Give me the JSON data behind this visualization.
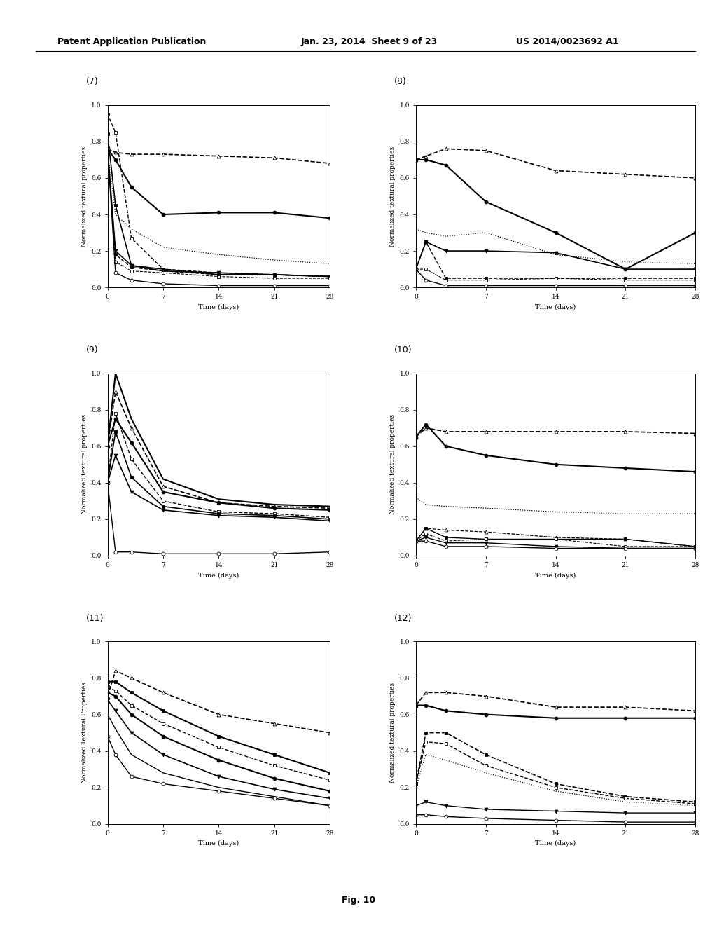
{
  "subplot_labels": [
    "(7)",
    "(8)",
    "(9)",
    "(10)",
    "(11)",
    "(12)"
  ],
  "xlabel": "Time (days)",
  "x_ticks": [
    0,
    7,
    14,
    21,
    28
  ],
  "ylim": [
    0.0,
    1.0
  ],
  "yticks": [
    0.0,
    0.2,
    0.4,
    0.6,
    0.8,
    1.0
  ],
  "ylabels": {
    "plot7": "Normalized textural properties",
    "plot8": "Normalized textural properties",
    "plot9": "Normalized textural properties",
    "plot10": "Normalized textural properties",
    "plot11": "Normalized Textural Properties",
    "plot12": "Normalized textural properties"
  },
  "plot7": {
    "series": [
      {
        "x": [
          0,
          1,
          3,
          7,
          14,
          21,
          28
        ],
        "y": [
          0.95,
          0.85,
          0.27,
          0.1,
          0.08,
          0.07,
          0.06
        ],
        "color": "black",
        "ls": "--",
        "marker": "s",
        "mfc": "white",
        "lw": 1.0
      },
      {
        "x": [
          0,
          1,
          3,
          7,
          14,
          21,
          28
        ],
        "y": [
          0.84,
          0.45,
          0.12,
          0.1,
          0.07,
          0.07,
          0.06
        ],
        "color": "black",
        "ls": "-",
        "marker": "s",
        "mfc": "black",
        "lw": 1.2
      },
      {
        "x": [
          0,
          1,
          3,
          7,
          14,
          21,
          28
        ],
        "y": [
          0.76,
          0.74,
          0.73,
          0.73,
          0.72,
          0.71,
          0.68
        ],
        "color": "black",
        "ls": "--",
        "marker": "^",
        "mfc": "white",
        "lw": 1.2
      },
      {
        "x": [
          0,
          1,
          3,
          7,
          14,
          21,
          28
        ],
        "y": [
          0.76,
          0.7,
          0.55,
          0.4,
          0.41,
          0.41,
          0.38
        ],
        "color": "black",
        "ls": "-",
        "marker": "o",
        "mfc": "black",
        "lw": 1.5
      },
      {
        "x": [
          0,
          1,
          3,
          7,
          14,
          21,
          28
        ],
        "y": [
          0.76,
          0.4,
          0.32,
          0.22,
          0.18,
          0.15,
          0.13
        ],
        "color": "black",
        "ls": ":",
        "marker": null,
        "mfc": null,
        "lw": 0.9
      },
      {
        "x": [
          0,
          1,
          3,
          7,
          14,
          21,
          28
        ],
        "y": [
          0.76,
          0.2,
          0.12,
          0.09,
          0.08,
          0.07,
          0.06
        ],
        "color": "black",
        "ls": "-",
        "marker": "v",
        "mfc": "black",
        "lw": 1.2
      },
      {
        "x": [
          0,
          1,
          3,
          7,
          14,
          21,
          28
        ],
        "y": [
          0.76,
          0.18,
          0.11,
          0.09,
          0.07,
          0.07,
          0.06
        ],
        "color": "black",
        "ls": "--",
        "marker": "s",
        "mfc": "black",
        "lw": 1.0
      },
      {
        "x": [
          0,
          1,
          3,
          7,
          14,
          21,
          28
        ],
        "y": [
          0.76,
          0.14,
          0.09,
          0.08,
          0.06,
          0.05,
          0.05
        ],
        "color": "black",
        "ls": "--",
        "marker": "s",
        "mfc": "white",
        "lw": 0.8
      },
      {
        "x": [
          0,
          1,
          3,
          7,
          14,
          21,
          28
        ],
        "y": [
          0.76,
          0.08,
          0.04,
          0.02,
          0.01,
          0.01,
          0.01
        ],
        "color": "black",
        "ls": "-",
        "marker": "o",
        "mfc": "white",
        "lw": 1.0
      }
    ]
  },
  "plot8": {
    "series": [
      {
        "x": [
          0,
          1,
          3,
          7,
          14,
          21,
          28
        ],
        "y": [
          0.7,
          0.72,
          0.76,
          0.75,
          0.64,
          0.62,
          0.6
        ],
        "color": "black",
        "ls": "--",
        "marker": "^",
        "mfc": "white",
        "lw": 1.2
      },
      {
        "x": [
          0,
          1,
          3,
          7,
          14,
          21,
          28
        ],
        "y": [
          0.7,
          0.7,
          0.67,
          0.47,
          0.3,
          0.1,
          0.3
        ],
        "color": "black",
        "ls": "-",
        "marker": "o",
        "mfc": "black",
        "lw": 1.5
      },
      {
        "x": [
          0,
          1,
          3,
          7,
          14,
          21,
          28
        ],
        "y": [
          0.32,
          0.3,
          0.28,
          0.3,
          0.18,
          0.14,
          0.13
        ],
        "color": "black",
        "ls": ":",
        "marker": null,
        "mfc": null,
        "lw": 0.9
      },
      {
        "x": [
          0,
          1,
          3,
          7,
          14,
          21,
          28
        ],
        "y": [
          0.1,
          0.25,
          0.2,
          0.2,
          0.19,
          0.1,
          0.1
        ],
        "color": "black",
        "ls": "-",
        "marker": "v",
        "mfc": "black",
        "lw": 1.2
      },
      {
        "x": [
          0,
          1,
          3,
          7,
          14,
          21,
          28
        ],
        "y": [
          0.1,
          0.25,
          0.05,
          0.05,
          0.05,
          0.05,
          0.05
        ],
        "color": "black",
        "ls": "--",
        "marker": "s",
        "mfc": "black",
        "lw": 1.0
      },
      {
        "x": [
          0,
          1,
          3,
          7,
          14,
          21,
          28
        ],
        "y": [
          0.1,
          0.1,
          0.04,
          0.04,
          0.05,
          0.04,
          0.04
        ],
        "color": "black",
        "ls": "--",
        "marker": "s",
        "mfc": "white",
        "lw": 0.8
      },
      {
        "x": [
          0,
          1,
          3,
          7,
          14,
          21,
          28
        ],
        "y": [
          0.1,
          0.04,
          0.01,
          0.01,
          0.01,
          0.01,
          0.01
        ],
        "color": "black",
        "ls": "-",
        "marker": "o",
        "mfc": "white",
        "lw": 1.0
      }
    ]
  },
  "plot9": {
    "series": [
      {
        "x": [
          0,
          1,
          3,
          7,
          14,
          21,
          28
        ],
        "y": [
          0.6,
          1.0,
          0.75,
          0.42,
          0.31,
          0.28,
          0.27
        ],
        "color": "black",
        "ls": "-",
        "marker": null,
        "mfc": null,
        "lw": 1.5
      },
      {
        "x": [
          0,
          1,
          3,
          7,
          14,
          21,
          28
        ],
        "y": [
          0.6,
          0.9,
          0.7,
          0.38,
          0.29,
          0.27,
          0.26
        ],
        "color": "black",
        "ls": "--",
        "marker": "^",
        "mfc": "white",
        "lw": 1.2
      },
      {
        "x": [
          0,
          1,
          3,
          7,
          14,
          21,
          28
        ],
        "y": [
          0.6,
          0.75,
          0.62,
          0.35,
          0.29,
          0.26,
          0.25
        ],
        "color": "black",
        "ls": "-",
        "marker": "o",
        "mfc": "black",
        "lw": 1.5
      },
      {
        "x": [
          0,
          1,
          3,
          7,
          14,
          21,
          28
        ],
        "y": [
          0.4,
          0.78,
          0.53,
          0.3,
          0.24,
          0.23,
          0.21
        ],
        "color": "black",
        "ls": "--",
        "marker": "s",
        "mfc": "white",
        "lw": 1.0
      },
      {
        "x": [
          0,
          1,
          3,
          7,
          14,
          21,
          28
        ],
        "y": [
          0.4,
          0.68,
          0.43,
          0.27,
          0.23,
          0.22,
          0.2
        ],
        "color": "black",
        "ls": "-",
        "marker": "s",
        "mfc": "black",
        "lw": 1.2
      },
      {
        "x": [
          0,
          1,
          3,
          7,
          14,
          21,
          28
        ],
        "y": [
          0.4,
          0.55,
          0.35,
          0.25,
          0.22,
          0.21,
          0.19
        ],
        "color": "black",
        "ls": "-",
        "marker": "v",
        "mfc": "black",
        "lw": 1.2
      },
      {
        "x": [
          0,
          1,
          3,
          7,
          14,
          21,
          28
        ],
        "y": [
          0.4,
          0.02,
          0.02,
          0.01,
          0.01,
          0.01,
          0.02
        ],
        "color": "black",
        "ls": "-",
        "marker": "o",
        "mfc": "white",
        "lw": 1.0
      }
    ]
  },
  "plot10": {
    "series": [
      {
        "x": [
          0,
          1,
          3,
          7,
          14,
          21,
          28
        ],
        "y": [
          0.65,
          0.7,
          0.68,
          0.68,
          0.68,
          0.68,
          0.67
        ],
        "color": "black",
        "ls": "--",
        "marker": "^",
        "mfc": "white",
        "lw": 1.2
      },
      {
        "x": [
          0,
          1,
          3,
          7,
          14,
          21,
          28
        ],
        "y": [
          0.65,
          0.72,
          0.6,
          0.55,
          0.5,
          0.48,
          0.46
        ],
        "color": "black",
        "ls": "-",
        "marker": "o",
        "mfc": "black",
        "lw": 1.5
      },
      {
        "x": [
          0,
          1,
          3,
          7,
          14,
          21,
          28
        ],
        "y": [
          0.32,
          0.28,
          0.27,
          0.26,
          0.24,
          0.23,
          0.23
        ],
        "color": "black",
        "ls": ":",
        "marker": null,
        "mfc": null,
        "lw": 0.9
      },
      {
        "x": [
          0,
          1,
          3,
          7,
          14,
          21,
          28
        ],
        "y": [
          0.08,
          0.15,
          0.14,
          0.13,
          0.1,
          0.09,
          0.05
        ],
        "color": "black",
        "ls": "--",
        "marker": "^",
        "mfc": "white",
        "lw": 0.9
      },
      {
        "x": [
          0,
          1,
          3,
          7,
          14,
          21,
          28
        ],
        "y": [
          0.08,
          0.15,
          0.1,
          0.09,
          0.09,
          0.09,
          0.05
        ],
        "color": "black",
        "ls": "-",
        "marker": "s",
        "mfc": "black",
        "lw": 1.0
      },
      {
        "x": [
          0,
          1,
          3,
          7,
          14,
          21,
          28
        ],
        "y": [
          0.08,
          0.12,
          0.08,
          0.09,
          0.09,
          0.05,
          0.05
        ],
        "color": "black",
        "ls": "--",
        "marker": "s",
        "mfc": "white",
        "lw": 0.8
      },
      {
        "x": [
          0,
          1,
          3,
          7,
          14,
          21,
          28
        ],
        "y": [
          0.08,
          0.1,
          0.07,
          0.07,
          0.05,
          0.04,
          0.04
        ],
        "color": "black",
        "ls": "-",
        "marker": "v",
        "mfc": "black",
        "lw": 1.0
      },
      {
        "x": [
          0,
          1,
          3,
          7,
          14,
          21,
          28
        ],
        "y": [
          0.08,
          0.08,
          0.05,
          0.05,
          0.04,
          0.04,
          0.04
        ],
        "color": "black",
        "ls": "-",
        "marker": "o",
        "mfc": "white",
        "lw": 1.0
      }
    ]
  },
  "plot11": {
    "series": [
      {
        "x": [
          0,
          1,
          3,
          7,
          14,
          21,
          28
        ],
        "y": [
          0.7,
          0.84,
          0.8,
          0.72,
          0.6,
          0.55,
          0.5
        ],
        "color": "black",
        "ls": "--",
        "marker": "^",
        "mfc": "white",
        "lw": 1.2
      },
      {
        "x": [
          0,
          1,
          3,
          7,
          14,
          21,
          28
        ],
        "y": [
          0.78,
          0.78,
          0.72,
          0.62,
          0.48,
          0.38,
          0.28
        ],
        "color": "black",
        "ls": "-",
        "marker": "s",
        "mfc": "black",
        "lw": 1.5
      },
      {
        "x": [
          0,
          1,
          3,
          7,
          14,
          21,
          28
        ],
        "y": [
          0.75,
          0.73,
          0.65,
          0.55,
          0.42,
          0.32,
          0.24
        ],
        "color": "black",
        "ls": "--",
        "marker": "s",
        "mfc": "white",
        "lw": 1.0
      },
      {
        "x": [
          0,
          1,
          3,
          7,
          14,
          21,
          28
        ],
        "y": [
          0.72,
          0.7,
          0.6,
          0.48,
          0.35,
          0.25,
          0.18
        ],
        "color": "black",
        "ls": "-",
        "marker": "o",
        "mfc": "black",
        "lw": 1.5
      },
      {
        "x": [
          0,
          1,
          3,
          7,
          14,
          21,
          28
        ],
        "y": [
          0.68,
          0.62,
          0.5,
          0.38,
          0.26,
          0.19,
          0.14
        ],
        "color": "black",
        "ls": "-",
        "marker": "v",
        "mfc": "black",
        "lw": 1.2
      },
      {
        "x": [
          0,
          1,
          3,
          7,
          14,
          21,
          28
        ],
        "y": [
          0.6,
          0.52,
          0.38,
          0.28,
          0.2,
          0.15,
          0.1
        ],
        "color": "black",
        "ls": "-",
        "marker": null,
        "mfc": null,
        "lw": 1.0
      },
      {
        "x": [
          0,
          1,
          3,
          7,
          14,
          21,
          28
        ],
        "y": [
          0.48,
          0.38,
          0.26,
          0.22,
          0.18,
          0.14,
          0.1
        ],
        "color": "black",
        "ls": "-",
        "marker": "o",
        "mfc": "white",
        "lw": 1.0
      }
    ]
  },
  "plot12": {
    "series": [
      {
        "x": [
          0,
          1,
          3,
          7,
          14,
          21,
          28
        ],
        "y": [
          0.65,
          0.72,
          0.72,
          0.7,
          0.64,
          0.64,
          0.62
        ],
        "color": "black",
        "ls": "--",
        "marker": "^",
        "mfc": "white",
        "lw": 1.2
      },
      {
        "x": [
          0,
          1,
          3,
          7,
          14,
          21,
          28
        ],
        "y": [
          0.65,
          0.65,
          0.62,
          0.6,
          0.58,
          0.58,
          0.58
        ],
        "color": "black",
        "ls": "-",
        "marker": "o",
        "mfc": "black",
        "lw": 1.5
      },
      {
        "x": [
          0,
          1,
          3,
          7,
          14,
          21,
          28
        ],
        "y": [
          0.22,
          0.5,
          0.5,
          0.38,
          0.22,
          0.15,
          0.12
        ],
        "color": "black",
        "ls": "--",
        "marker": "s",
        "mfc": "black",
        "lw": 1.2
      },
      {
        "x": [
          0,
          1,
          3,
          7,
          14,
          21,
          28
        ],
        "y": [
          0.22,
          0.45,
          0.44,
          0.32,
          0.2,
          0.14,
          0.11
        ],
        "color": "black",
        "ls": "--",
        "marker": "s",
        "mfc": "white",
        "lw": 1.0
      },
      {
        "x": [
          0,
          1,
          3,
          7,
          14,
          21,
          28
        ],
        "y": [
          0.2,
          0.38,
          0.35,
          0.28,
          0.18,
          0.12,
          0.1
        ],
        "color": "black",
        "ls": ":",
        "marker": null,
        "mfc": null,
        "lw": 0.9
      },
      {
        "x": [
          0,
          1,
          3,
          7,
          14,
          21,
          28
        ],
        "y": [
          0.1,
          0.12,
          0.1,
          0.08,
          0.07,
          0.06,
          0.06
        ],
        "color": "black",
        "ls": "-",
        "marker": "v",
        "mfc": "black",
        "lw": 1.0
      },
      {
        "x": [
          0,
          1,
          3,
          7,
          14,
          21,
          28
        ],
        "y": [
          0.05,
          0.05,
          0.04,
          0.03,
          0.02,
          0.01,
          0.01
        ],
        "color": "black",
        "ls": "-",
        "marker": "o",
        "mfc": "white",
        "lw": 1.0
      }
    ]
  }
}
